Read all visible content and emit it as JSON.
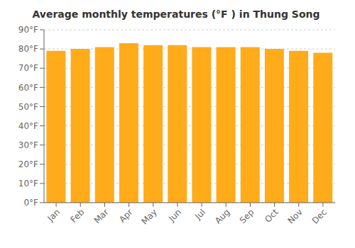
{
  "chart_data": {
    "type": "bar",
    "title": "Average monthly temperatures (°F ) in Thung Song",
    "categories": [
      "Jan",
      "Feb",
      "Mar",
      "Apr",
      "May",
      "Jun",
      "Jul",
      "Aug",
      "Sep",
      "Oct",
      "Nov",
      "Dec"
    ],
    "values": [
      79,
      80,
      81,
      83,
      82,
      82,
      81,
      81,
      81,
      80,
      79,
      78
    ],
    "color": "#ffab1a",
    "ylim": [
      0,
      90
    ],
    "yticks": [
      {
        "value": 0,
        "label": "0°F"
      },
      {
        "value": 10,
        "label": "10°F"
      },
      {
        "value": 20,
        "label": "20°F"
      },
      {
        "value": 30,
        "label": "30°F"
      },
      {
        "value": 40,
        "label": "40°F"
      },
      {
        "value": 50,
        "label": "50°F"
      },
      {
        "value": 60,
        "label": "60°F"
      },
      {
        "value": 70,
        "label": "70°F"
      },
      {
        "value": 80,
        "label": "80°F"
      },
      {
        "value": 90,
        "label": "90°F"
      }
    ],
    "grid": true
  }
}
